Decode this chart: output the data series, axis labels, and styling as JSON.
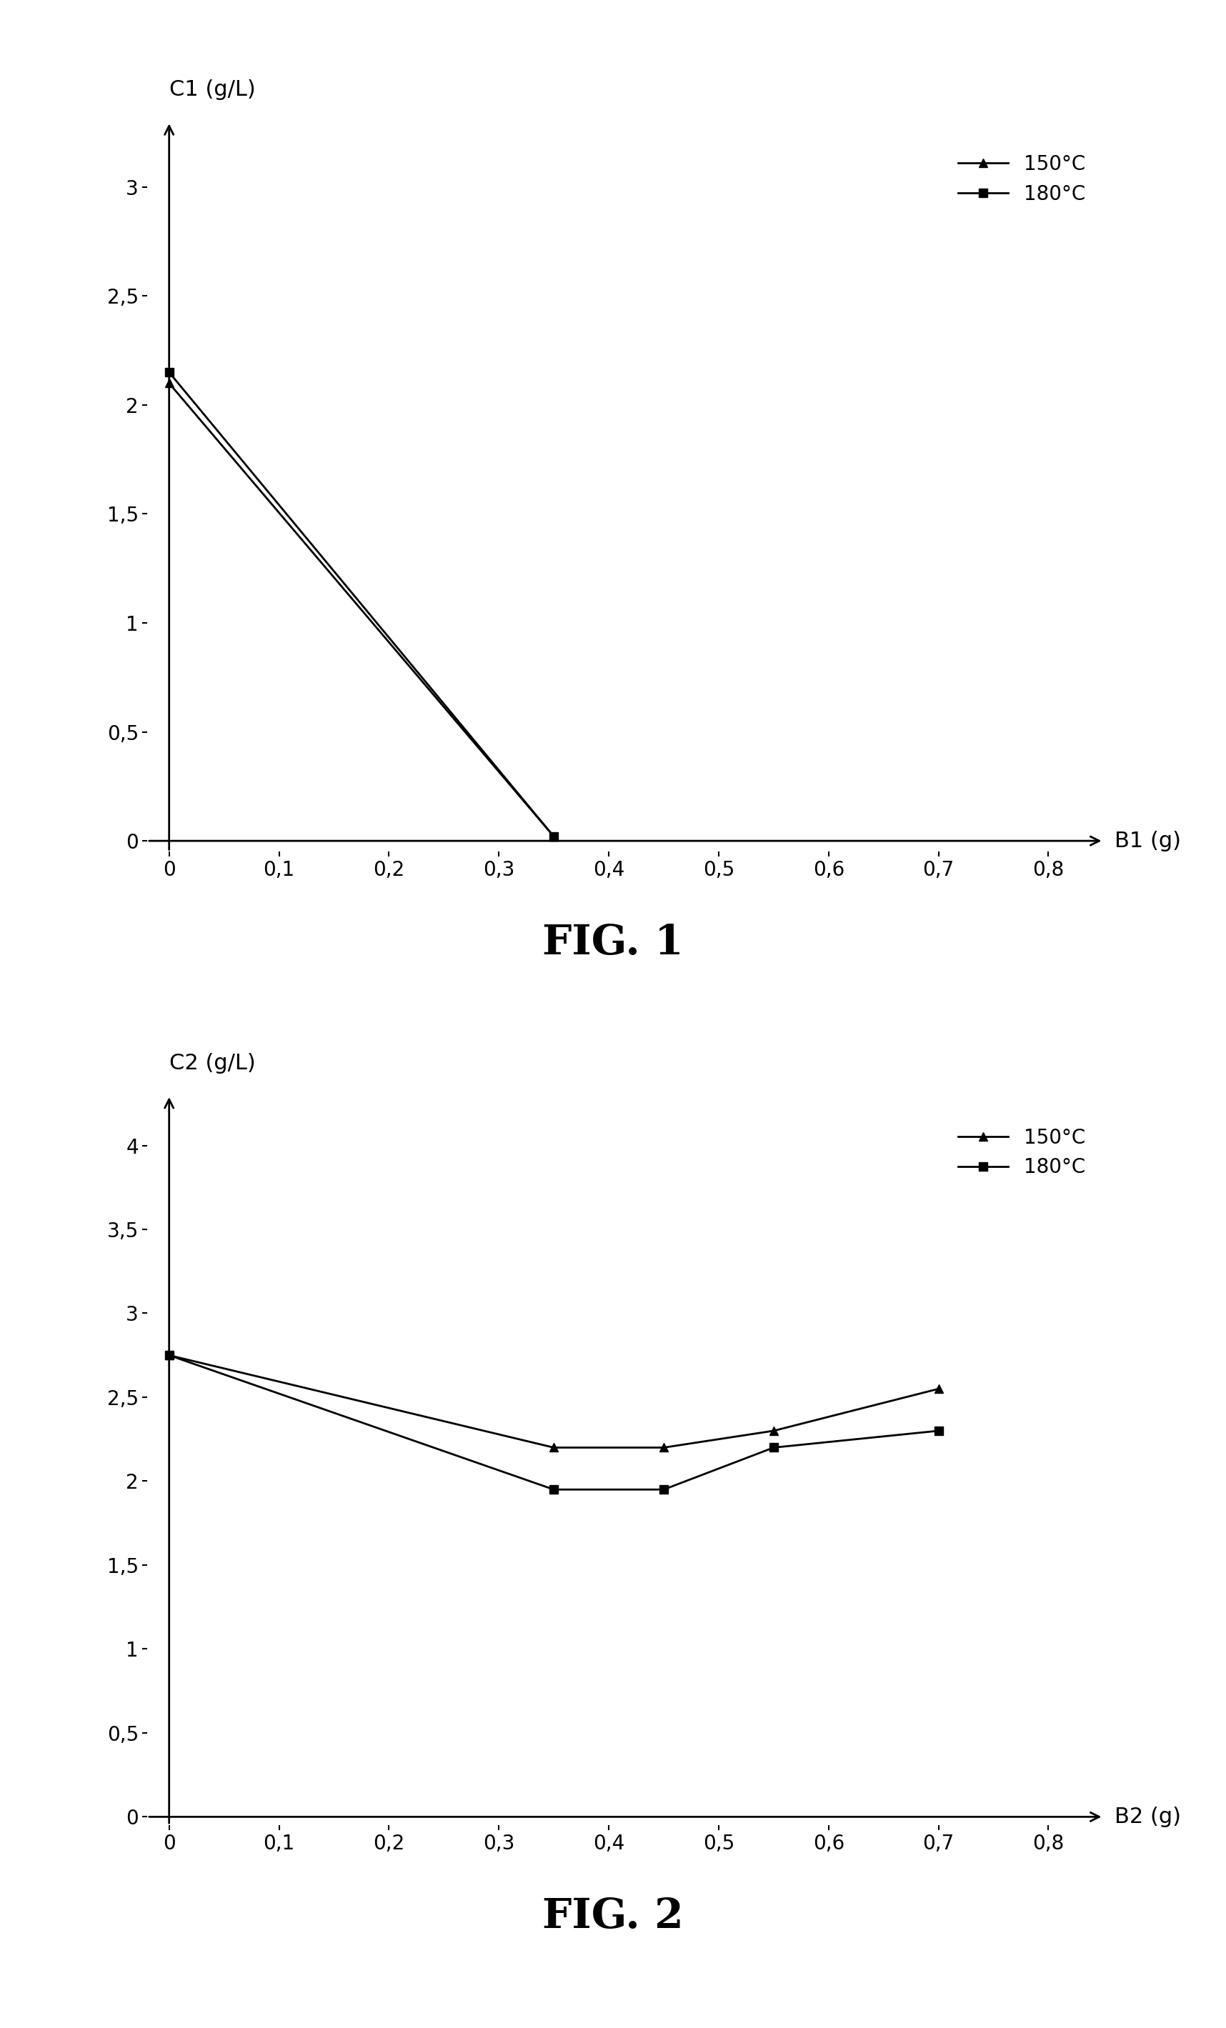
{
  "fig1": {
    "title": "FIG. 1",
    "ylabel": "C1 (g/L)",
    "xlabel": "B1 (g)",
    "xlim": [
      -0.02,
      0.85
    ],
    "ylim": [
      -0.05,
      3.3
    ],
    "xticks": [
      0,
      0.1,
      0.2,
      0.3,
      0.4,
      0.5,
      0.6,
      0.7,
      0.8
    ],
    "yticks": [
      0,
      0.5,
      1,
      1.5,
      2,
      2.5,
      3
    ],
    "series": [
      {
        "label": "150°C",
        "x": [
          0,
          0.35
        ],
        "y": [
          2.1,
          0.02
        ],
        "marker": "^",
        "color": "#000000"
      },
      {
        "label": "180°C",
        "x": [
          0,
          0.35
        ],
        "y": [
          2.15,
          0.02
        ],
        "marker": "s",
        "color": "#000000"
      }
    ]
  },
  "fig2": {
    "title": "FIG. 2",
    "ylabel": "C2 (g/L)",
    "xlabel": "B2 (g)",
    "xlim": [
      -0.02,
      0.85
    ],
    "ylim": [
      -0.05,
      4.3
    ],
    "xticks": [
      0,
      0.1,
      0.2,
      0.3,
      0.4,
      0.5,
      0.6,
      0.7,
      0.8
    ],
    "yticks": [
      0,
      0.5,
      1,
      1.5,
      2,
      2.5,
      3,
      3.5,
      4
    ],
    "series": [
      {
        "label": "150°C",
        "x": [
          0,
          0.35,
          0.45,
          0.55,
          0.7
        ],
        "y": [
          2.75,
          2.2,
          2.2,
          2.3,
          2.55
        ],
        "marker": "^",
        "color": "#000000"
      },
      {
        "label": "180°C",
        "x": [
          0,
          0.35,
          0.45,
          0.55,
          0.7
        ],
        "y": [
          2.75,
          1.95,
          1.95,
          2.2,
          2.3
        ],
        "marker": "s",
        "color": "#000000"
      }
    ]
  },
  "background_color": "#ffffff",
  "text_color": "#000000",
  "font_size_ticks": 20,
  "font_size_label": 22,
  "font_size_title": 42,
  "font_size_legend": 20,
  "line_width": 2.0,
  "marker_size": 9
}
